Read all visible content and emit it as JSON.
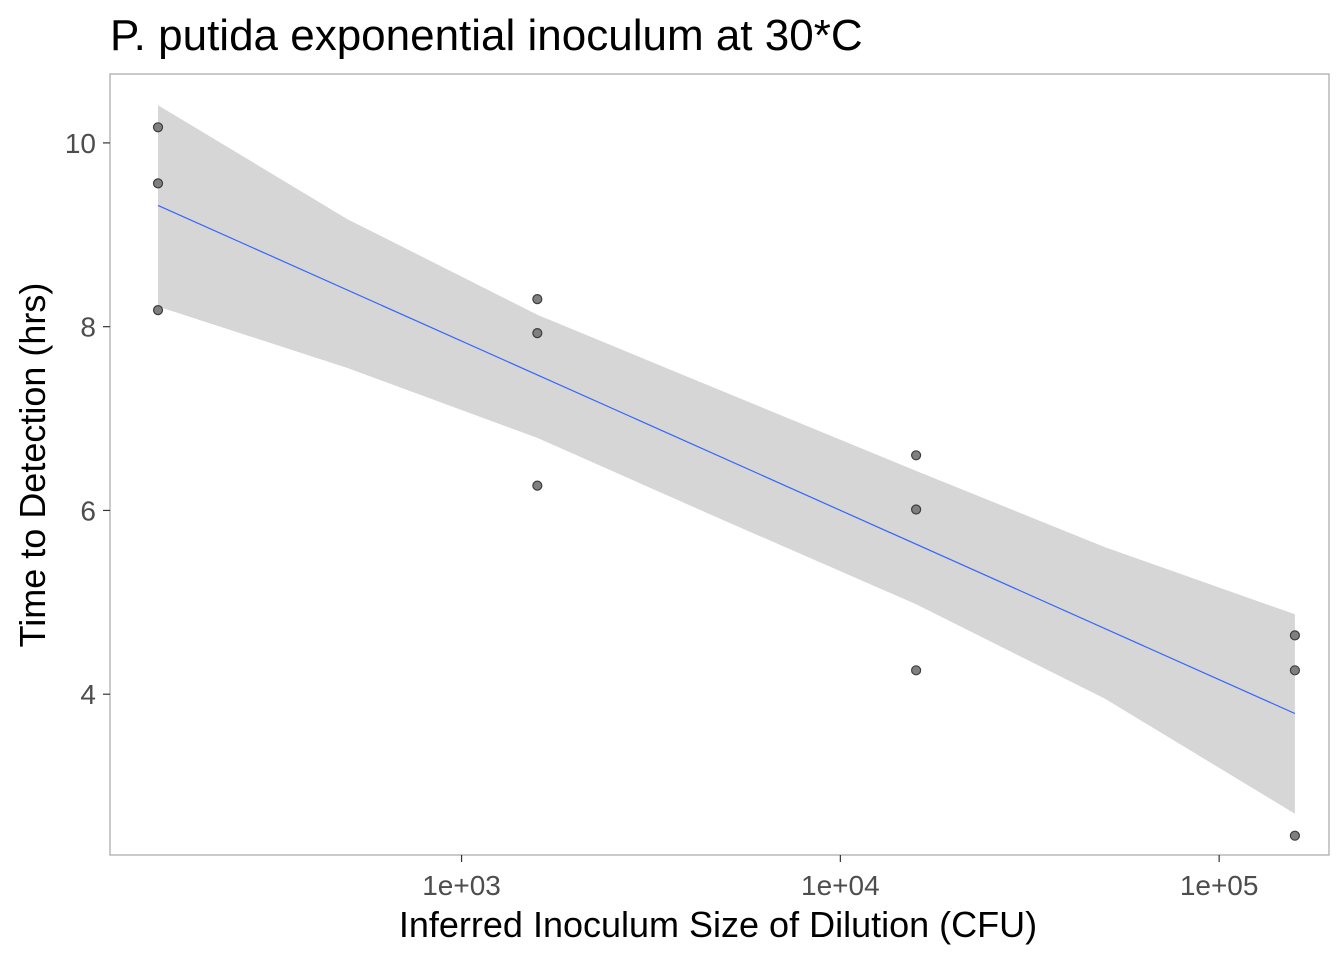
{
  "chart_data": {
    "type": "scatter",
    "title": "P. putida exponential inoculum at 30*C",
    "xlabel": "Inferred Inoculum Size of Dilution (CFU)",
    "ylabel": "Time to Detection (hrs)",
    "x_scale": "log10",
    "xlim": [
      118,
      195000
    ],
    "ylim": [
      2.25,
      10.75
    ],
    "x_ticks": [
      1000,
      10000,
      100000
    ],
    "x_tick_labels": [
      "1e+03",
      "1e+04",
      "1e+05"
    ],
    "y_ticks": [
      4,
      6,
      8,
      10
    ],
    "y_tick_labels": [
      "4",
      "6",
      "8",
      "10"
    ],
    "grid": false,
    "legend": "none",
    "points": [
      {
        "x": 158,
        "y": 10.17
      },
      {
        "x": 158,
        "y": 9.56
      },
      {
        "x": 158,
        "y": 8.18
      },
      {
        "x": 1585,
        "y": 8.3
      },
      {
        "x": 1585,
        "y": 7.93
      },
      {
        "x": 1585,
        "y": 6.27
      },
      {
        "x": 15849,
        "y": 6.6
      },
      {
        "x": 15849,
        "y": 6.01
      },
      {
        "x": 15849,
        "y": 4.26
      },
      {
        "x": 158489,
        "y": 4.64
      },
      {
        "x": 158489,
        "y": 4.26
      },
      {
        "x": 158489,
        "y": 2.46
      }
    ],
    "fit_line": {
      "x": [
        158,
        158489
      ],
      "y": [
        9.32,
        3.79
      ]
    },
    "confidence_band": {
      "x": [
        158,
        500,
        1585,
        5000,
        15849,
        50000,
        158489
      ],
      "upper": [
        10.41,
        9.17,
        8.13,
        7.28,
        6.43,
        5.6,
        4.87
      ],
      "lower": [
        8.22,
        7.55,
        6.79,
        5.88,
        4.98,
        3.95,
        2.7
      ]
    },
    "colors": {
      "line": "#3366ff",
      "band": "#d6d6d6",
      "point_fill": "#7f7f7f",
      "point_stroke": "#3d3d3d",
      "panel_border": "#a6a6a6"
    }
  }
}
